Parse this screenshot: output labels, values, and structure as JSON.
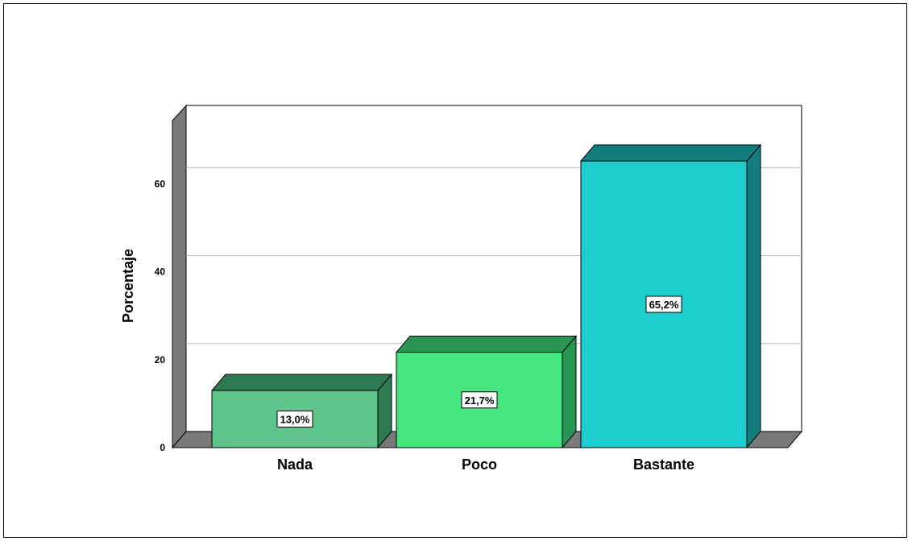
{
  "chart_data": {
    "type": "bar",
    "categories": [
      "Nada",
      "Poco",
      "Bastante"
    ],
    "values": [
      13.0,
      21.7,
      65.2
    ],
    "data_labels": [
      "13,0%",
      "21,7%",
      "65,2%"
    ],
    "ylabel": "Porcentaje",
    "yticks": [
      "0",
      "20",
      "40",
      "60"
    ],
    "ylim": [
      0,
      70
    ],
    "grid": true,
    "style": "3d",
    "colors": {
      "front": [
        "#5ec58a",
        "#45e57f",
        "#1ecdcd"
      ],
      "top": [
        "#2e7a52",
        "#289552",
        "#137d7d"
      ],
      "side": [
        "#2e7a52",
        "#289552",
        "#137d7d"
      ],
      "floor": "#7a7a7a",
      "wall": "#7a7a7a"
    }
  }
}
